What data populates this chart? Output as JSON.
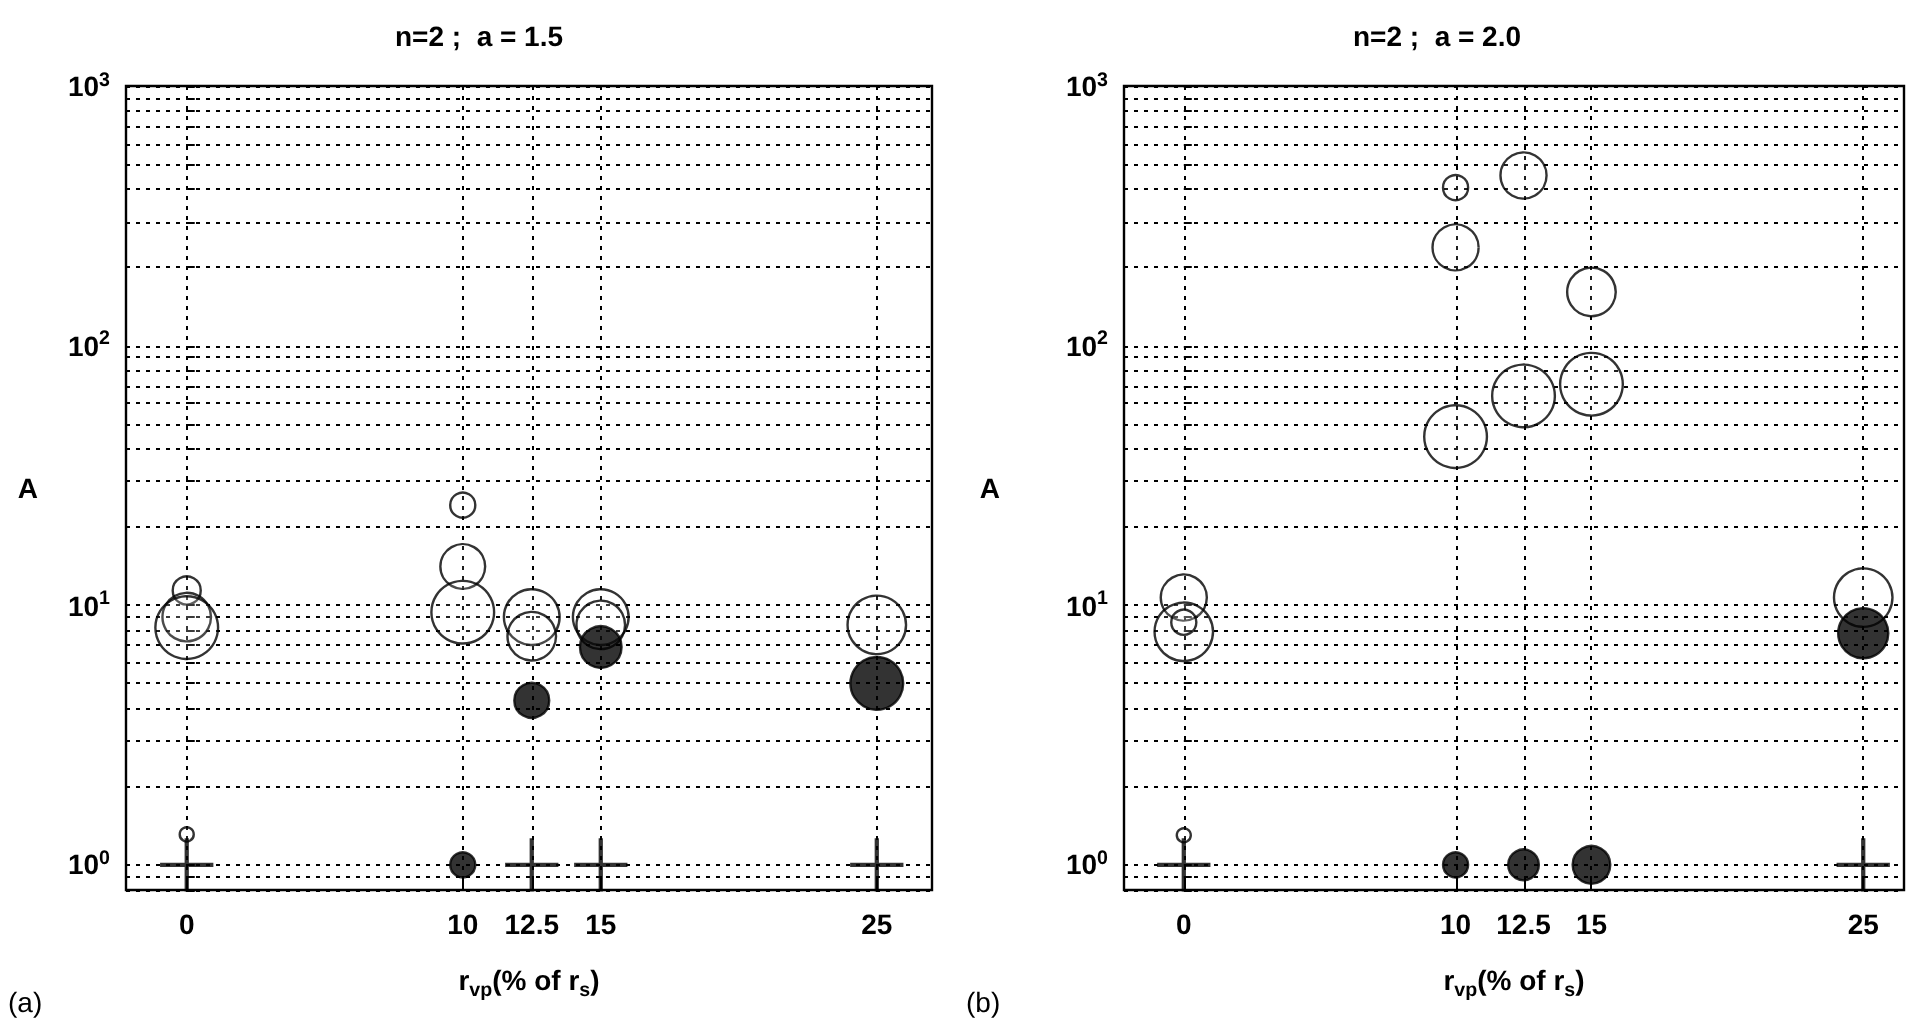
{
  "chart_data": [
    {
      "type": "bubble",
      "title": "n=2 ;  a = 1.5",
      "xlabel": "r$_{vp}$(% of r$_{s}$)",
      "ylabel": "A",
      "annotations": [
        "(a)"
      ],
      "log": "y",
      "grid": true,
      "xlim": [
        -2.2,
        27
      ],
      "xticks": [
        0,
        10,
        12.5,
        15,
        25
      ],
      "ylim": [
        0.8,
        1000
      ],
      "yticks": [
        {
          "value": 1,
          "label": "10$^{0}$"
        },
        {
          "value": 10,
          "label": "10$^{1}$"
        },
        {
          "value": 100,
          "label": "10$^{2}$"
        },
        {
          "value": 1000,
          "label": "10$^{3}$"
        }
      ],
      "series": [
        {
          "color": "#ffffff",
          "x": [
            0,
            0,
            0,
            0,
            10,
            10,
            10,
            12.5,
            12.5,
            15,
            15,
            25
          ],
          "values": [
            11.4,
            9.0,
            8.2,
            1.31,
            24.3,
            14.1,
            9.4,
            9.0,
            7.6,
            9.0,
            8.4,
            8.4
          ],
          "sizes": [
            0.2,
            0.6,
            1,
            0.05,
            0.16,
            0.51,
            1,
            0.79,
            0.6,
            0.79,
            0.6,
            0.87
          ]
        },
        {
          "color": "#000000",
          "x": [
            10,
            12.5,
            15,
            25
          ],
          "values": [
            1.0,
            4.3,
            6.9,
            5.0
          ],
          "sizes": [
            0.16,
            0.31,
            0.44,
            0.71
          ]
        },
        {
          "type": "scatter",
          "marker": "cross",
          "color": "#000000",
          "x": [
            0,
            12.5,
            15,
            25
          ],
          "values": [
            1,
            1,
            1,
            1
          ]
        }
      ]
    },
    {
      "type": "bubble",
      "title": "n=2 ;  a = 2.0",
      "xlabel": "r$_{vp}$(% of r$_{s}$)",
      "ylabel": "A",
      "annotations": [
        "(b)"
      ],
      "log": "y",
      "grid": true,
      "xlim": [
        -2.2,
        26.5
      ],
      "xticks": [
        0,
        10,
        12.5,
        15,
        25
      ],
      "ylim": [
        0.8,
        1000
      ],
      "yticks": [
        {
          "value": 1,
          "label": "10$^{0}$"
        },
        {
          "value": 10,
          "label": "10$^{1}$"
        },
        {
          "value": 100,
          "label": "10$^{2}$"
        },
        {
          "value": 1000,
          "label": "10$^{3}$"
        }
      ],
      "series": [
        {
          "color": "#ffffff",
          "x": [
            0,
            0,
            0,
            0,
            10,
            10,
            10,
            12.5,
            12.5,
            15,
            15,
            25
          ],
          "values": [
            10.7,
            7.9,
            8.6,
            1.3,
            406,
            239,
            44.6,
            452,
            64,
            161,
            71,
            10.7
          ],
          "sizes": [
            0.54,
            0.87,
            0.16,
            0.05,
            0.16,
            0.54,
            1,
            0.54,
            1,
            0.6,
            1,
            0.87
          ]
        },
        {
          "color": "#000000",
          "x": [
            10,
            12.5,
            15,
            25
          ],
          "values": [
            1.0,
            1.0,
            1.0,
            7.8
          ],
          "sizes": [
            0.16,
            0.24,
            0.36,
            0.64
          ]
        },
        {
          "type": "scatter",
          "marker": "cross",
          "color": "#000000",
          "x": [
            0,
            25
          ],
          "values": [
            1,
            1
          ]
        }
      ]
    }
  ]
}
